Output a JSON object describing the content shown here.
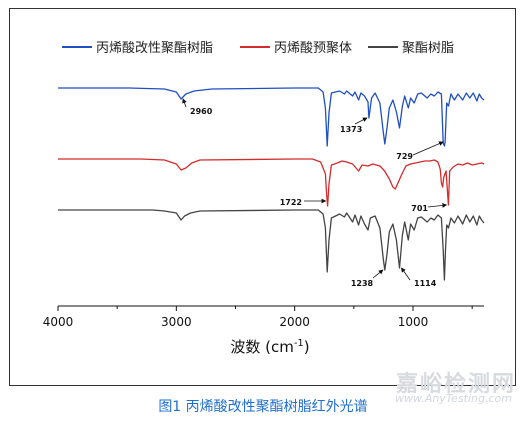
{
  "caption": "图1 丙烯酸改性聚酯树脂红外光谱",
  "watermark": {
    "cn": "嘉峪检测网",
    "en": "www.AnyTesting.com"
  },
  "chart_data": {
    "type": "line",
    "xlabel": "波数 (cm",
    "xlabel_sup": "-1",
    "xlabel_tail": ")",
    "xlim": [
      4000,
      400
    ],
    "x_reversed": true,
    "xticks": [
      4000,
      3000,
      2000,
      1000
    ],
    "xtick_labels": [
      "4000",
      "3000",
      "2000",
      "1000"
    ],
    "legend_position": "top",
    "series": [
      {
        "name": "丙烯酸改性聚酯树脂",
        "color": "#1f4fc2",
        "baseline": 88,
        "points": [
          [
            4000,
            0
          ],
          [
            3700,
            0
          ],
          [
            3400,
            0
          ],
          [
            3100,
            -1
          ],
          [
            3000,
            -4
          ],
          [
            2960,
            -11
          ],
          [
            2920,
            -6
          ],
          [
            2850,
            -3
          ],
          [
            2700,
            -1
          ],
          [
            2000,
            0
          ],
          [
            1800,
            0
          ],
          [
            1760,
            -4
          ],
          [
            1740,
            -20
          ],
          [
            1725,
            -58
          ],
          [
            1710,
            -25
          ],
          [
            1690,
            -5
          ],
          [
            1620,
            -3
          ],
          [
            1580,
            -6
          ],
          [
            1560,
            -3
          ],
          [
            1510,
            -8
          ],
          [
            1490,
            -4
          ],
          [
            1460,
            -12
          ],
          [
            1440,
            -5
          ],
          [
            1410,
            -8
          ],
          [
            1380,
            -14
          ],
          [
            1373,
            -30
          ],
          [
            1350,
            -10
          ],
          [
            1320,
            -5
          ],
          [
            1280,
            -15
          ],
          [
            1250,
            -45
          ],
          [
            1238,
            -56
          ],
          [
            1220,
            -40
          ],
          [
            1200,
            -20
          ],
          [
            1170,
            -12
          ],
          [
            1140,
            -24
          ],
          [
            1114,
            -40
          ],
          [
            1090,
            -18
          ],
          [
            1070,
            -8
          ],
          [
            1040,
            -20
          ],
          [
            1020,
            -10
          ],
          [
            990,
            -15
          ],
          [
            960,
            -6
          ],
          [
            930,
            -5
          ],
          [
            880,
            -10
          ],
          [
            850,
            -6
          ],
          [
            820,
            -8
          ],
          [
            790,
            -4
          ],
          [
            760,
            -6
          ],
          [
            745,
            -55
          ],
          [
            735,
            -58
          ],
          [
            729,
            -54
          ],
          [
            715,
            -15
          ],
          [
            700,
            -18
          ],
          [
            680,
            -6
          ],
          [
            650,
            -12
          ],
          [
            620,
            -6
          ],
          [
            580,
            -12
          ],
          [
            550,
            -5
          ],
          [
            520,
            -10
          ],
          [
            490,
            -5
          ],
          [
            460,
            -13
          ],
          [
            440,
            -6
          ],
          [
            420,
            -10
          ],
          [
            400,
            -12
          ]
        ]
      },
      {
        "name": "丙烯酸预聚体",
        "color": "#d42b2b",
        "baseline": 159,
        "points": [
          [
            4000,
            0
          ],
          [
            3600,
            0
          ],
          [
            3300,
            0
          ],
          [
            3100,
            -1
          ],
          [
            3000,
            -5
          ],
          [
            2960,
            -11
          ],
          [
            2920,
            -9
          ],
          [
            2870,
            -4
          ],
          [
            2800,
            -1
          ],
          [
            2000,
            0
          ],
          [
            1850,
            0
          ],
          [
            1780,
            -3
          ],
          [
            1740,
            -15
          ],
          [
            1730,
            -35
          ],
          [
            1722,
            -47
          ],
          [
            1710,
            -25
          ],
          [
            1690,
            -6
          ],
          [
            1640,
            -4
          ],
          [
            1600,
            -2
          ],
          [
            1560,
            -3
          ],
          [
            1510,
            -5
          ],
          [
            1460,
            -12
          ],
          [
            1430,
            -6
          ],
          [
            1380,
            -7
          ],
          [
            1340,
            -5
          ],
          [
            1280,
            -7
          ],
          [
            1240,
            -12
          ],
          [
            1200,
            -20
          ],
          [
            1170,
            -28
          ],
          [
            1150,
            -30
          ],
          [
            1120,
            -22
          ],
          [
            1090,
            -14
          ],
          [
            1060,
            -7
          ],
          [
            1020,
            -5
          ],
          [
            980,
            -4
          ],
          [
            940,
            -3
          ],
          [
            900,
            -2
          ],
          [
            860,
            -2
          ],
          [
            820,
            -1
          ],
          [
            790,
            -3
          ],
          [
            770,
            -10
          ],
          [
            760,
            -24
          ],
          [
            750,
            -28
          ],
          [
            740,
            -18
          ],
          [
            720,
            -12
          ],
          [
            710,
            -30
          ],
          [
            701,
            -46
          ],
          [
            690,
            -12
          ],
          [
            660,
            -8
          ],
          [
            620,
            -5
          ],
          [
            580,
            -6
          ],
          [
            540,
            -4
          ],
          [
            500,
            -6
          ],
          [
            460,
            -5
          ],
          [
            420,
            -4
          ],
          [
            400,
            -5
          ]
        ]
      },
      {
        "name": "聚酯树脂",
        "color": "#444444",
        "baseline": 210,
        "points": [
          [
            4000,
            0
          ],
          [
            3500,
            0
          ],
          [
            3200,
            0
          ],
          [
            3100,
            -1
          ],
          [
            3000,
            -3
          ],
          [
            2960,
            -10
          ],
          [
            2930,
            -6
          ],
          [
            2880,
            -3
          ],
          [
            2800,
            -1
          ],
          [
            2000,
            0
          ],
          [
            1800,
            0
          ],
          [
            1760,
            -4
          ],
          [
            1740,
            -18
          ],
          [
            1725,
            -62
          ],
          [
            1710,
            -30
          ],
          [
            1690,
            -8
          ],
          [
            1620,
            -4
          ],
          [
            1580,
            -7
          ],
          [
            1560,
            -3
          ],
          [
            1510,
            -12
          ],
          [
            1490,
            -5
          ],
          [
            1460,
            -15
          ],
          [
            1440,
            -6
          ],
          [
            1410,
            -14
          ],
          [
            1380,
            -20
          ],
          [
            1360,
            -8
          ],
          [
            1320,
            -6
          ],
          [
            1280,
            -18
          ],
          [
            1250,
            -50
          ],
          [
            1238,
            -60
          ],
          [
            1220,
            -44
          ],
          [
            1200,
            -22
          ],
          [
            1170,
            -14
          ],
          [
            1140,
            -30
          ],
          [
            1114,
            -58
          ],
          [
            1090,
            -25
          ],
          [
            1070,
            -12
          ],
          [
            1040,
            -30
          ],
          [
            1020,
            -14
          ],
          [
            990,
            -20
          ],
          [
            960,
            -8
          ],
          [
            930,
            -7
          ],
          [
            880,
            -12
          ],
          [
            850,
            -8
          ],
          [
            820,
            -10
          ],
          [
            790,
            -5
          ],
          [
            760,
            -8
          ],
          [
            745,
            -40
          ],
          [
            735,
            -70
          ],
          [
            725,
            -40
          ],
          [
            715,
            -15
          ],
          [
            700,
            -18
          ],
          [
            680,
            -8
          ],
          [
            650,
            -13
          ],
          [
            620,
            -6
          ],
          [
            580,
            -14
          ],
          [
            550,
            -5
          ],
          [
            520,
            -12
          ],
          [
            490,
            -6
          ],
          [
            460,
            -15
          ],
          [
            440,
            -6
          ],
          [
            420,
            -10
          ],
          [
            400,
            -13
          ]
        ]
      }
    ],
    "annotations": [
      {
        "label": "2960",
        "x": 2960,
        "series": 0
      },
      {
        "label": "1373",
        "x": 1373,
        "series": 0
      },
      {
        "label": "729",
        "x": 729,
        "series": 0
      },
      {
        "label": "1722",
        "x": 1722,
        "series": 1
      },
      {
        "label": "701",
        "x": 701,
        "series": 1
      },
      {
        "label": "1238",
        "x": 1238,
        "series": 2
      },
      {
        "label": "1114",
        "x": 1114,
        "series": 2
      }
    ]
  }
}
